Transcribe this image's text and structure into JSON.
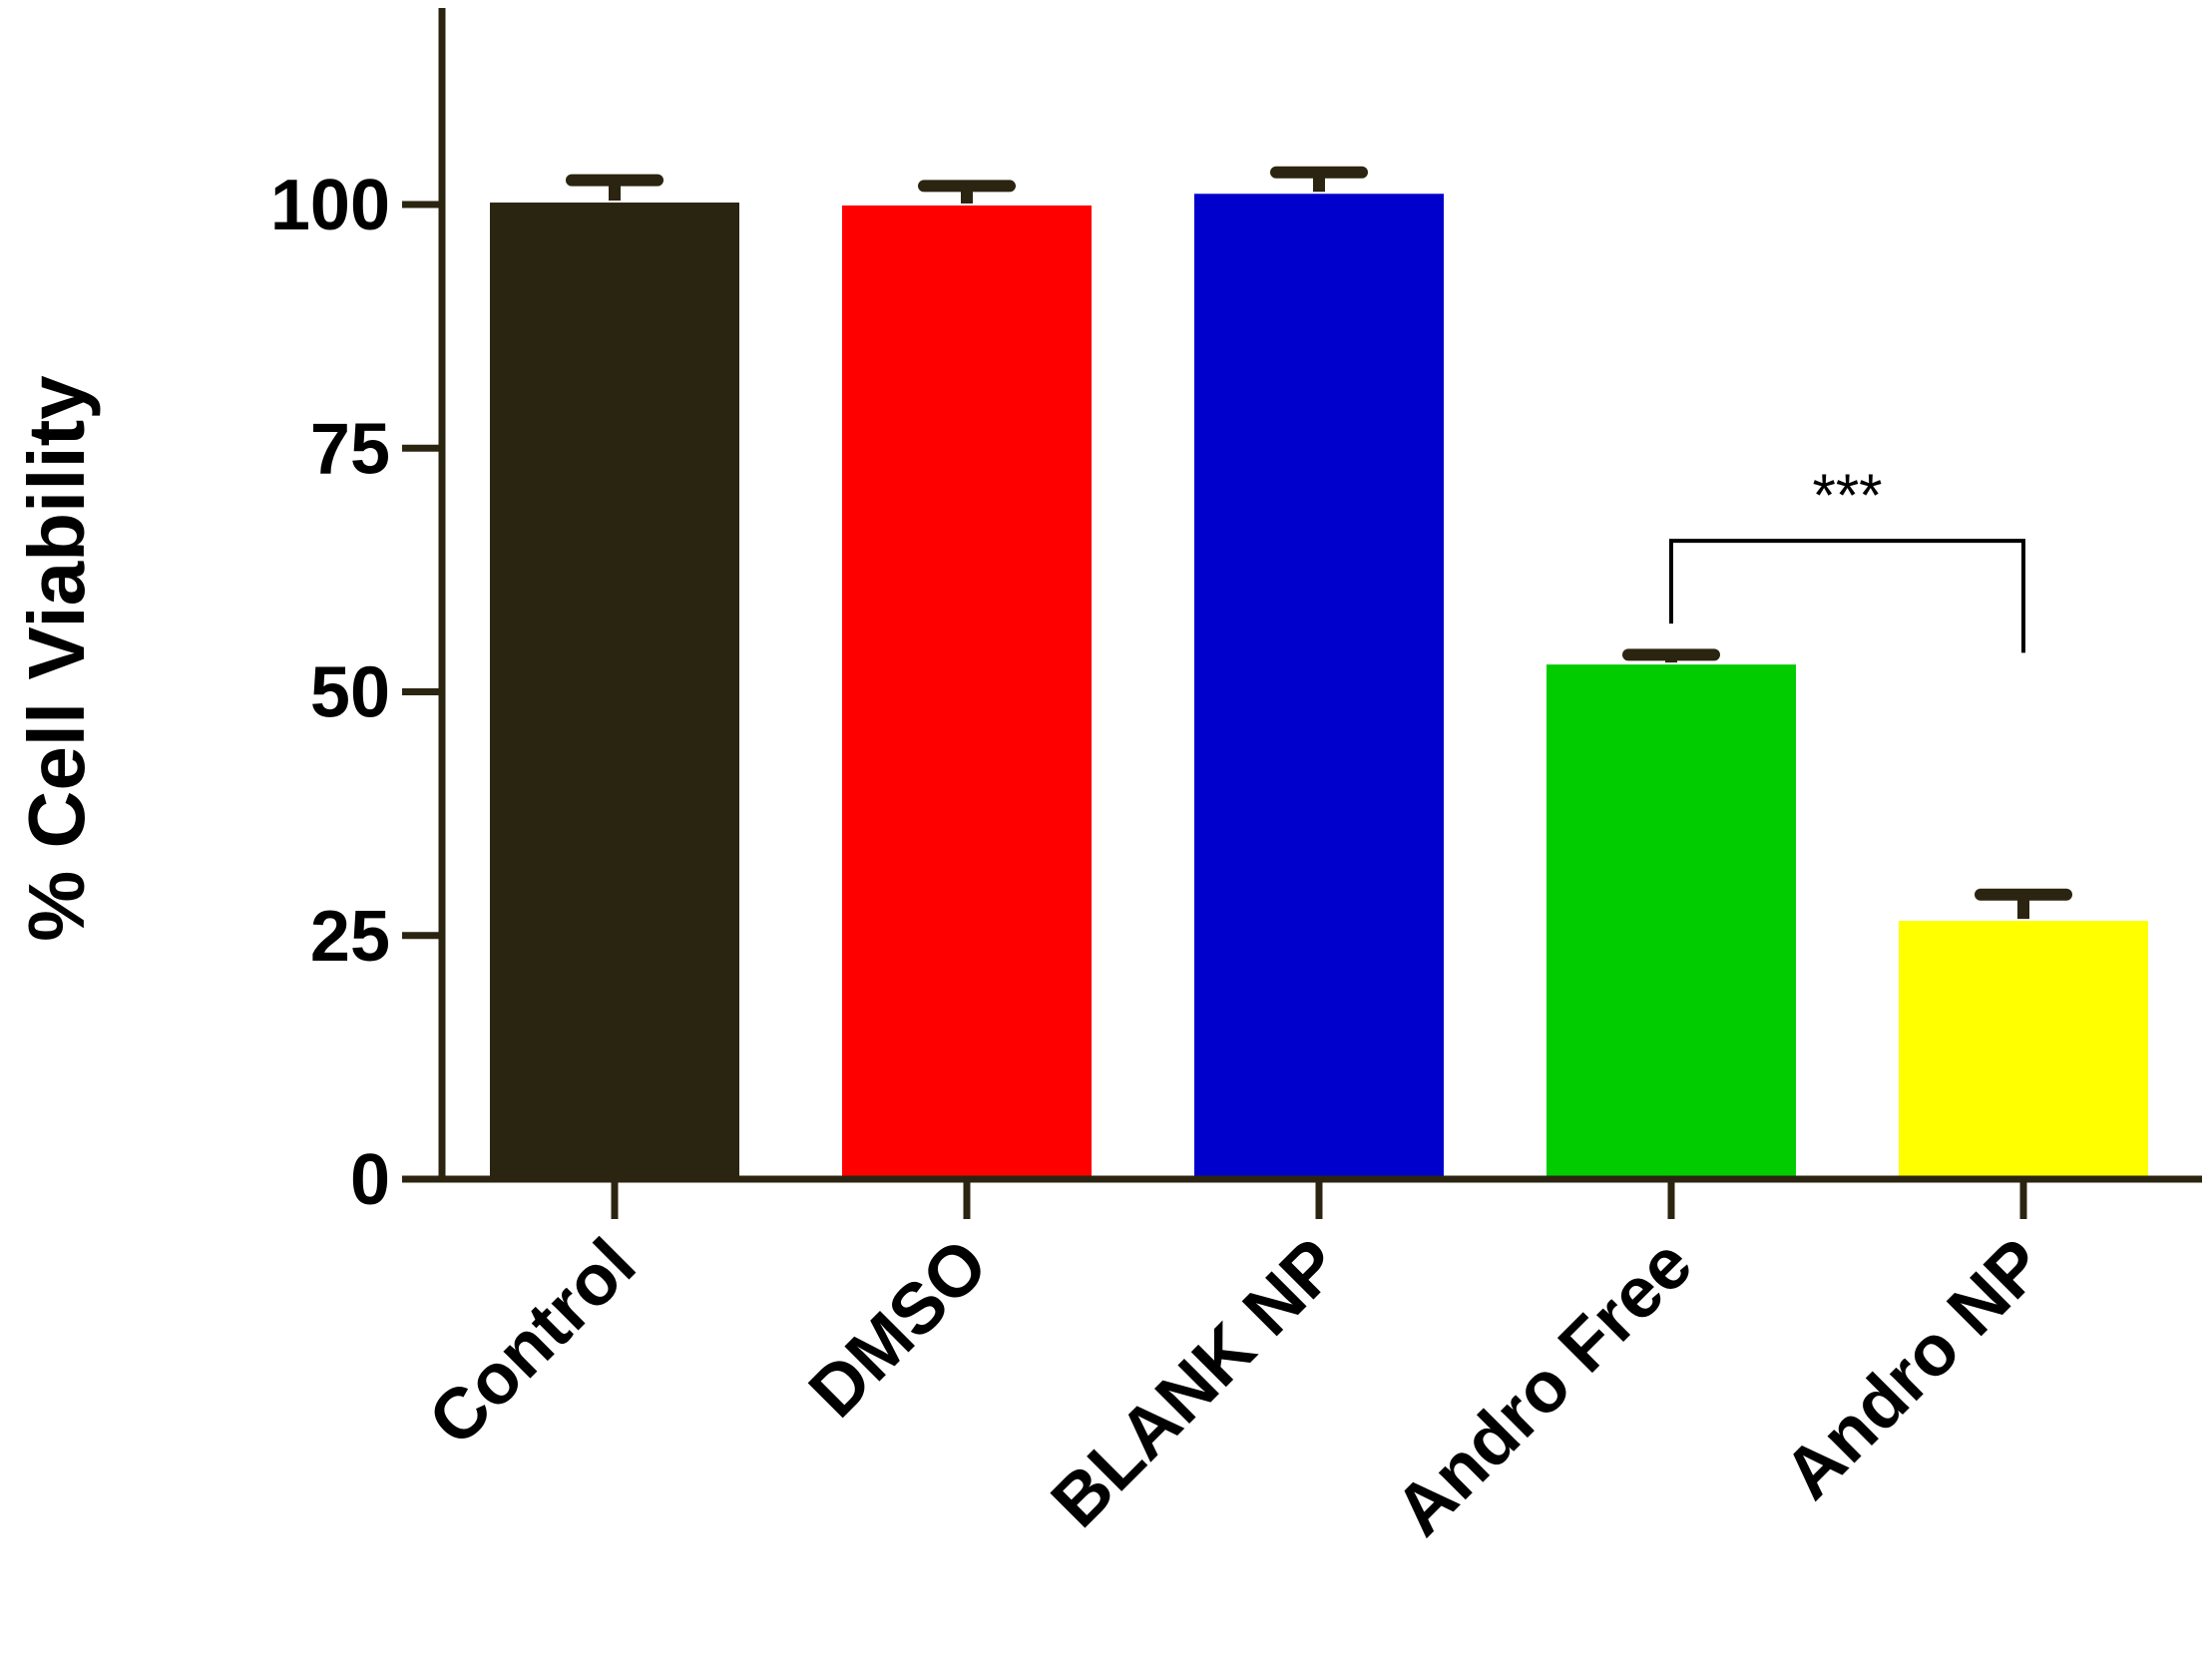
{
  "colors": {
    "axis": "#2b2410",
    "bracket": "#000000"
  },
  "chart_data": {
    "type": "bar",
    "title": "",
    "xlabel": "",
    "ylabel": "% Cell Viability",
    "ylim": [
      0,
      120
    ],
    "yticks": [
      "0",
      "25",
      "50",
      "75",
      "100"
    ],
    "categories": [
      "Control",
      "DMSO",
      "BLANK NP",
      "Andro Free",
      "Andro NP"
    ],
    "values": [
      100.2,
      99.9,
      101.1,
      52.8,
      26.5
    ],
    "errors": [
      2.3,
      2.0,
      2.2,
      1.0,
      2.7
    ],
    "bar_colors": [
      "#2a2510",
      "#ff0000",
      "#0000cc",
      "#00cc00",
      "#ffff00"
    ],
    "grid": false,
    "annotations": [
      {
        "text": "***",
        "from_category": "Andro Free",
        "to_category": "Andro NP",
        "bracket_y": 65.5,
        "left_end": 57,
        "right_end": 54
      }
    ]
  }
}
